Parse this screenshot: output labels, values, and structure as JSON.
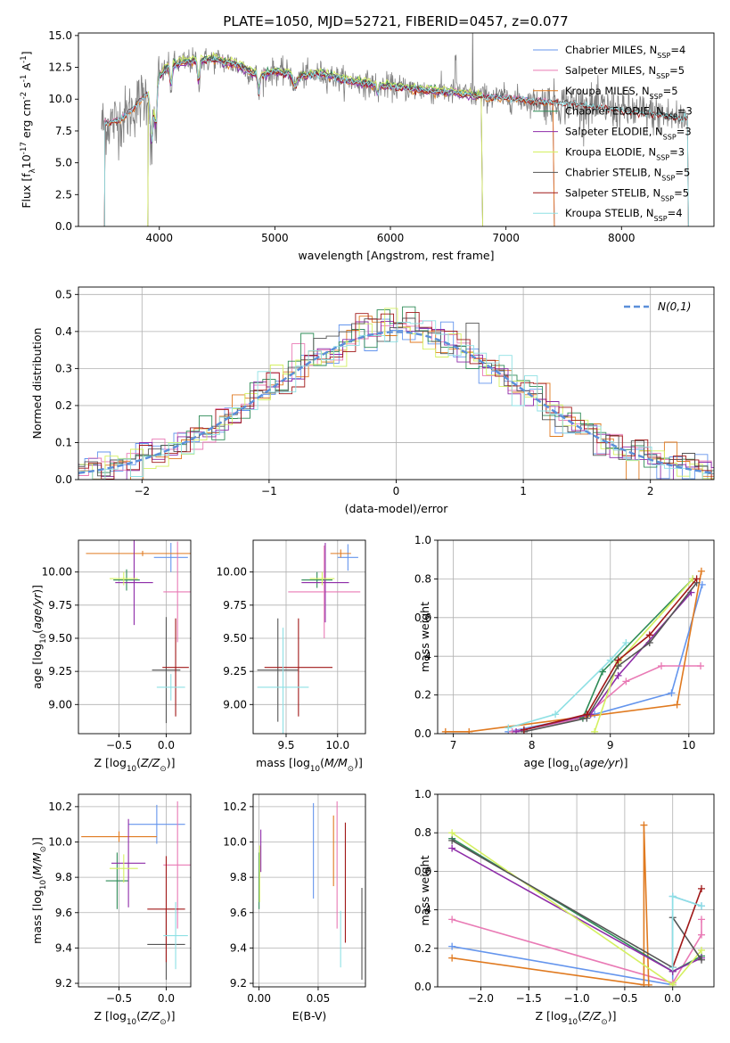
{
  "figure": {
    "title": "PLATE=1050, MJD=52721, FIBERID=0457, z=0.077"
  },
  "colors": {
    "Chabrier MILES": "#6495ed",
    "Salpeter MILES": "#e97ab5",
    "Kroupa MILES": "#e07a20",
    "Chabrier ELODIE": "#2e8b57",
    "Salpeter ELODIE": "#8e2ca8",
    "Kroupa ELODIE": "#d4f060",
    "Chabrier STELIB": "#555555",
    "Salpeter STELIB": "#a01818",
    "Kroupa STELIB": "#8ee0e4",
    "observed": "#808080",
    "normal": "#5b8fd9"
  },
  "chart_data": [
    {
      "id": "spectrum",
      "type": "line",
      "title": "PLATE=1050, MJD=52721, FIBERID=0457, z=0.077",
      "xlabel": "wavelength [Angstrom, rest frame]",
      "ylabel": "Flux [f$_\\lambda$10$^{-17}$ erg cm$^{-2}$ s$^{-1}$ A$^{-1}$]",
      "xlim": [
        3300,
        8800
      ],
      "ylim": [
        0,
        15.2
      ],
      "xticks": [
        4000,
        5000,
        6000,
        7000,
        8000
      ],
      "yticks": [
        0.0,
        2.5,
        5.0,
        7.5,
        10.0,
        12.5,
        15.0
      ],
      "grid": false,
      "legend": "upper right",
      "series": [
        {
          "name": "Chabrier MILES, N$_{SSP}$=4",
          "key": "Chabrier MILES",
          "xrange": [
            3525,
            7420
          ],
          "offset": 0.0
        },
        {
          "name": "Salpeter MILES, N$_{SSP}$=5",
          "key": "Salpeter MILES",
          "xrange": [
            3525,
            7420
          ],
          "offset": 0.1
        },
        {
          "name": "Kroupa MILES, N$_{SSP}$=5",
          "key": "Kroupa MILES",
          "xrange": [
            3525,
            7420
          ],
          "offset": -0.1
        },
        {
          "name": "Chabrier ELODIE, N$_{SSP}$=3",
          "key": "Chabrier ELODIE",
          "xrange": [
            3900,
            6800
          ],
          "offset": 0.15
        },
        {
          "name": "Salpeter ELODIE, N$_{SSP}$=3",
          "key": "Salpeter ELODIE",
          "xrange": [
            3900,
            6800
          ],
          "offset": -0.15
        },
        {
          "name": "Kroupa ELODIE, N$_{SSP}$=3",
          "key": "Kroupa ELODIE",
          "xrange": [
            3900,
            6800
          ],
          "offset": 0.25
        },
        {
          "name": "Chabrier STELIB, N$_{SSP}$=5",
          "key": "Chabrier STELIB",
          "xrange": [
            3525,
            8580
          ],
          "offset": 0.05
        },
        {
          "name": "Salpeter STELIB, N$_{SSP}$=5",
          "key": "Salpeter STELIB",
          "xrange": [
            3525,
            8580
          ],
          "offset": -0.05
        },
        {
          "name": "Kroupa STELIB, N$_{SSP}$=4",
          "key": "Kroupa STELIB",
          "xrange": [
            3525,
            8580
          ],
          "offset": 0.0
        }
      ],
      "continuum": [
        [
          3500,
          8.0
        ],
        [
          3640,
          8.3
        ],
        [
          3700,
          8.6
        ],
        [
          3800,
          9.5
        ],
        [
          3900,
          10.5
        ],
        [
          4000,
          11.8
        ],
        [
          4100,
          12.7
        ],
        [
          4300,
          13.0
        ],
        [
          4500,
          13.1
        ],
        [
          4700,
          12.6
        ],
        [
          4861,
          11.8
        ],
        [
          5000,
          12.2
        ],
        [
          5200,
          11.8
        ],
        [
          5400,
          12.0
        ],
        [
          5600,
          11.5
        ],
        [
          5800,
          11.2
        ],
        [
          6000,
          11.0
        ],
        [
          6300,
          10.7
        ],
        [
          6563,
          10.5
        ],
        [
          6800,
          10.2
        ],
        [
          7000,
          10.1
        ],
        [
          7300,
          9.8
        ],
        [
          7600,
          9.6
        ],
        [
          8000,
          9.1
        ],
        [
          8300,
          8.8
        ],
        [
          8500,
          8.5
        ]
      ],
      "observed_range": [
        3500,
        8560
      ]
    },
    {
      "id": "residuals",
      "type": "bar",
      "xlabel": "(data-model)/error",
      "ylabel": "Normed distribution",
      "xlim": [
        -2.5,
        2.5
      ],
      "ylim": [
        0,
        0.52
      ],
      "xticks": [
        -2,
        -1,
        0,
        1,
        2
      ],
      "yticks": [
        0.0,
        0.1,
        0.2,
        0.3,
        0.4,
        0.5
      ],
      "grid": true,
      "legend": "upper right",
      "reference": {
        "name": "$\\mathcal{N}(0,1)$",
        "mu": 0,
        "sigma": 1
      },
      "bin_width": 0.1
    },
    {
      "id": "age_vs_Z",
      "type": "scatter",
      "xlabel": "Z [log$_{10}$($Z/Z_\\odot$)]",
      "ylabel": "age  [log$_{10}$($age/yr$)]",
      "xlim": [
        -0.93,
        0.26
      ],
      "ylim": [
        8.78,
        10.24
      ],
      "xticks": [
        -0.5,
        0.0
      ],
      "yticks": [
        9.0,
        9.25,
        9.5,
        9.75,
        10.0
      ],
      "grid": true,
      "points": [
        {
          "key": "Chabrier MILES",
          "x": 0.05,
          "xerr": 0.18,
          "y": 10.11,
          "yerr": 0.11
        },
        {
          "key": "Salpeter MILES",
          "x": 0.12,
          "xerr": 0.15,
          "y": 9.85,
          "yerr": 0.38
        },
        {
          "key": "Kroupa MILES",
          "x": -0.25,
          "xerr": 0.6,
          "y": 10.14,
          "yerr": 0.02
        },
        {
          "key": "Chabrier ELODIE",
          "x": -0.42,
          "xerr": 0.14,
          "y": 9.94,
          "yerr": 0.08
        },
        {
          "key": "Salpeter ELODIE",
          "x": -0.34,
          "xerr": 0.2,
          "y": 9.92,
          "yerr": 0.32
        },
        {
          "key": "Kroupa ELODIE",
          "x": -0.45,
          "xerr": 0.15,
          "y": 9.95,
          "yerr": 0.05
        },
        {
          "key": "Chabrier STELIB",
          "x": 0.0,
          "xerr": 0.15,
          "y": 9.26,
          "yerr": 0.4
        },
        {
          "key": "Salpeter STELIB",
          "x": 0.1,
          "xerr": 0.14,
          "y": 9.28,
          "yerr": 0.37
        },
        {
          "key": "Kroupa STELIB",
          "x": 0.05,
          "xerr": 0.15,
          "y": 9.13,
          "yerr": 0.1
        }
      ]
    },
    {
      "id": "age_vs_mass",
      "type": "scatter",
      "xlabel": "mass [log$_{10}$($M/M_\\odot$)]",
      "ylabel": "",
      "xlim": [
        9.18,
        10.27
      ],
      "ylim": [
        8.78,
        10.24
      ],
      "xticks": [
        9.5,
        10.0
      ],
      "yticks": [
        9.0,
        9.25,
        9.5,
        9.75,
        10.0
      ],
      "grid": true,
      "points": [
        {
          "key": "Chabrier MILES",
          "x": 10.1,
          "xerr": 0.1,
          "y": 10.11,
          "yerr": 0.1
        },
        {
          "key": "Salpeter MILES",
          "x": 9.87,
          "xerr": 0.35,
          "y": 9.85,
          "yerr": 0.35
        },
        {
          "key": "Kroupa MILES",
          "x": 10.03,
          "xerr": 0.1,
          "y": 10.14,
          "yerr": 0.03
        },
        {
          "key": "Chabrier ELODIE",
          "x": 9.8,
          "xerr": 0.15,
          "y": 9.94,
          "yerr": 0.06
        },
        {
          "key": "Salpeter ELODIE",
          "x": 9.88,
          "xerr": 0.23,
          "y": 9.92,
          "yerr": 0.3
        },
        {
          "key": "Kroupa ELODIE",
          "x": 9.85,
          "xerr": 0.12,
          "y": 9.95,
          "yerr": 0.05
        },
        {
          "key": "Chabrier STELIB",
          "x": 9.42,
          "xerr": 0.2,
          "y": 9.26,
          "yerr": 0.39
        },
        {
          "key": "Salpeter STELIB",
          "x": 9.62,
          "xerr": 0.33,
          "y": 9.28,
          "yerr": 0.37
        },
        {
          "key": "Kroupa STELIB",
          "x": 9.47,
          "xerr": 0.25,
          "y": 9.13,
          "yerr": 0.45
        }
      ]
    },
    {
      "id": "weight_vs_age",
      "type": "line",
      "xlabel": "age  [log$_{10}$($age/yr$)]",
      "ylabel": "mass weight",
      "xlim": [
        6.8,
        10.32
      ],
      "ylim": [
        0,
        1
      ],
      "xticks": [
        7,
        8,
        9,
        10
      ],
      "yticks": [
        0.0,
        0.2,
        0.4,
        0.6,
        0.8,
        1.0
      ],
      "grid": true,
      "series": [
        {
          "key": "Chabrier MILES",
          "x": [
            7.7,
            8.8,
            9.78,
            10.17
          ],
          "y": [
            0.01,
            0.1,
            0.21,
            0.77
          ]
        },
        {
          "key": "Salpeter MILES",
          "x": [
            7.75,
            8.65,
            9.2,
            9.65,
            10.15
          ],
          "y": [
            0.01,
            0.08,
            0.27,
            0.35,
            0.35
          ]
        },
        {
          "key": "Kroupa MILES",
          "x": [
            6.9,
            7.2,
            9.85,
            10.16
          ],
          "y": [
            0.01,
            0.01,
            0.15,
            0.84
          ]
        },
        {
          "key": "Chabrier ELODIE",
          "x": [
            8.65,
            8.9,
            10.05
          ],
          "y": [
            0.08,
            0.32,
            0.8
          ]
        },
        {
          "key": "Salpeter ELODIE",
          "x": [
            7.8,
            8.75,
            9.1,
            10.03
          ],
          "y": [
            0.01,
            0.1,
            0.3,
            0.73
          ]
        },
        {
          "key": "Kroupa ELODIE",
          "x": [
            8.8,
            9.1,
            10.05
          ],
          "y": [
            0.01,
            0.37,
            0.8
          ]
        },
        {
          "key": "Chabrier STELIB",
          "x": [
            7.9,
            8.7,
            9.1,
            9.5,
            10.1
          ],
          "y": [
            0.01,
            0.08,
            0.35,
            0.47,
            0.78
          ]
        },
        {
          "key": "Salpeter STELIB",
          "x": [
            7.9,
            8.7,
            9.1,
            9.5,
            10.1
          ],
          "y": [
            0.02,
            0.1,
            0.38,
            0.51,
            0.8
          ]
        },
        {
          "key": "Kroupa STELIB",
          "x": [
            7.7,
            8.3,
            9.0,
            9.2
          ],
          "y": [
            0.03,
            0.1,
            0.38,
            0.47
          ]
        }
      ]
    },
    {
      "id": "mass_vs_Z",
      "type": "scatter",
      "xlabel": "Z [log$_{10}$($Z/Z_\\odot$)]",
      "ylabel": "mass [log$_{10}$($M/M_\\odot$)]",
      "xlim": [
        -0.93,
        0.26
      ],
      "ylim": [
        9.18,
        10.27
      ],
      "xticks": [
        -0.5,
        0.0
      ],
      "yticks": [
        9.2,
        9.4,
        9.6,
        9.8,
        10.0,
        10.2
      ],
      "grid": true,
      "points": [
        {
          "key": "Chabrier MILES",
          "x": -0.1,
          "xerr": 0.3,
          "y": 10.1,
          "yerr": 0.11
        },
        {
          "key": "Salpeter MILES",
          "x": 0.12,
          "xerr": 0.15,
          "y": 9.87,
          "yerr": 0.36
        },
        {
          "key": "Kroupa MILES",
          "x": -0.5,
          "xerr": 0.4,
          "y": 10.03,
          "yerr": 0.03
        },
        {
          "key": "Chabrier ELODIE",
          "x": -0.52,
          "xerr": 0.12,
          "y": 9.78,
          "yerr": 0.16
        },
        {
          "key": "Salpeter ELODIE",
          "x": -0.4,
          "xerr": 0.18,
          "y": 9.88,
          "yerr": 0.25
        },
        {
          "key": "Kroupa ELODIE",
          "x": -0.45,
          "xerr": 0.15,
          "y": 9.85,
          "yerr": 0.08
        },
        {
          "key": "Chabrier STELIB",
          "x": 0.0,
          "xerr": 0.2,
          "y": 9.42,
          "yerr": 0.2
        },
        {
          "key": "Salpeter STELIB",
          "x": 0.0,
          "xerr": 0.2,
          "y": 9.62,
          "yerr": 0.3
        },
        {
          "key": "Kroupa STELIB",
          "x": 0.1,
          "xerr": 0.13,
          "y": 9.47,
          "yerr": 0.19
        }
      ]
    },
    {
      "id": "mass_vs_EBV",
      "type": "scatter",
      "xlabel": "E(B-V)",
      "ylabel": "",
      "xlim": [
        -0.005,
        0.09
      ],
      "ylim": [
        9.18,
        10.27
      ],
      "xticks": [
        0.0,
        0.05
      ],
      "yticks": [
        9.2,
        9.4,
        9.6,
        9.8,
        10.0,
        10.2
      ],
      "grid": true,
      "points": [
        {
          "key": "Chabrier MILES",
          "x": 0.046,
          "xerr": 0,
          "y": 9.95,
          "yerr": 0.27
        },
        {
          "key": "Salpeter MILES",
          "x": 0.066,
          "xerr": 0,
          "y": 9.87,
          "yerr": 0.36
        },
        {
          "key": "Kroupa MILES",
          "x": 0.063,
          "xerr": 0,
          "y": 9.95,
          "yerr": 0.2
        },
        {
          "key": "Chabrier ELODIE",
          "x": 0.0,
          "xerr": 0,
          "y": 9.78,
          "yerr": 0.16
        },
        {
          "key": "Salpeter ELODIE",
          "x": 0.0015,
          "xerr": 0,
          "y": 9.95,
          "yerr": 0.12
        },
        {
          "key": "Kroupa ELODIE",
          "x": 0.0005,
          "xerr": 0,
          "y": 9.82,
          "yerr": 0.16
        },
        {
          "key": "Chabrier STELIB",
          "x": 0.087,
          "xerr": 0,
          "y": 9.48,
          "yerr": 0.26
        },
        {
          "key": "Salpeter STELIB",
          "x": 0.073,
          "xerr": 0,
          "y": 9.77,
          "yerr": 0.34
        },
        {
          "key": "Kroupa STELIB",
          "x": 0.069,
          "xerr": 0,
          "y": 9.45,
          "yerr": 0.16
        }
      ]
    },
    {
      "id": "weight_vs_Z",
      "type": "line",
      "xlabel": "Z [log$_{10}$($Z/Z_\\odot$)]",
      "ylabel": "mass weight",
      "xlim": [
        -2.45,
        0.43
      ],
      "ylim": [
        0,
        1
      ],
      "xticks": [
        -2.0,
        -1.5,
        -1.0,
        -0.5,
        0.0
      ],
      "yticks": [
        0.0,
        0.2,
        0.4,
        0.6,
        0.8,
        1.0
      ],
      "grid": true,
      "series": [
        {
          "key": "Chabrier MILES",
          "x": [
            -2.3,
            0.0,
            0.0,
            0.3
          ],
          "y": [
            0.21,
            0.01,
            0.47,
            0.42
          ]
        },
        {
          "key": "Salpeter MILES",
          "x": [
            -2.3,
            0.0,
            0.3,
            0.3
          ],
          "y": [
            0.35,
            0.02,
            0.27,
            0.35
          ]
        },
        {
          "key": "Kroupa MILES",
          "x": [
            -2.3,
            -0.3,
            -0.3,
            -0.25
          ],
          "y": [
            0.15,
            0.01,
            0.84,
            0.01
          ]
        },
        {
          "key": "Chabrier ELODIE",
          "x": [
            -2.3,
            0.0,
            0.3
          ],
          "y": [
            0.77,
            0.08,
            0.16
          ]
        },
        {
          "key": "Salpeter ELODIE",
          "x": [
            -2.3,
            0.0,
            0.3
          ],
          "y": [
            0.72,
            0.08,
            0.15
          ]
        },
        {
          "key": "Kroupa ELODIE",
          "x": [
            -2.3,
            0.0,
            0.3
          ],
          "y": [
            0.8,
            0.01,
            0.19
          ]
        },
        {
          "key": "Chabrier STELIB",
          "x": [
            -2.3,
            0.0,
            0.0,
            0.3
          ],
          "y": [
            0.76,
            0.1,
            0.36,
            0.14
          ]
        },
        {
          "key": "Salpeter STELIB",
          "x": [
            0.0,
            0.3
          ],
          "y": [
            0.1,
            0.51
          ]
        },
        {
          "key": "Kroupa STELIB",
          "x": [
            0.0,
            0.0,
            0.3
          ],
          "y": [
            0.1,
            0.47,
            0.42
          ]
        }
      ]
    }
  ]
}
